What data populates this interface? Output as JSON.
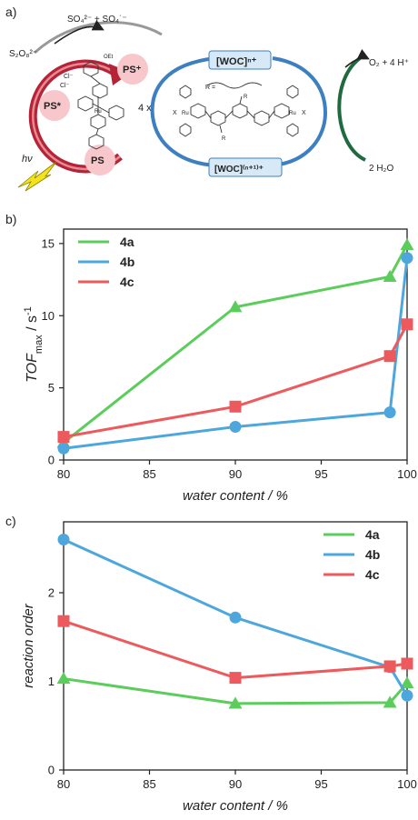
{
  "scheme": {
    "panel_label": "a)",
    "labels": {
      "so4_products": "SO₄²⁻ + SO₄˙⁻",
      "s2o8": "S₂O₈²⁻",
      "ps_plus": "PS⁺",
      "ps_star": "PS*",
      "ps": "PS",
      "hv": "hν",
      "cl1": "Cl⁻",
      "cl2": "Cl⁻",
      "four_x": "4 x",
      "woc_n": "[WOC]ⁿ⁺",
      "woc_n1": "[WOC]⁽ⁿ⁺¹⁾⁺",
      "o2_products": "O₂ + 4 H⁺",
      "water": "2 H₂O",
      "r_def": "R = ",
      "ru": "Ru",
      "x": "X",
      "oet": "OEt",
      "r": "R"
    }
  },
  "chart_data": [
    {
      "panel_label": "b)",
      "type": "line",
      "xlabel": "water content / %",
      "ylabel": {
        "main": "TOF",
        "sub": "max",
        "rest": " / s",
        "sup": "-1"
      },
      "xlim": [
        80,
        100
      ],
      "ylim": [
        0,
        16
      ],
      "xticks": [
        "80",
        "85",
        "90",
        "95",
        "100"
      ],
      "yticks": [
        "0",
        "5",
        "10",
        "15"
      ],
      "legend_position": "top-left",
      "series": [
        {
          "name": "4a",
          "color": "#5ccd5c",
          "marker": "triangle",
          "x": [
            80,
            90,
            99,
            100
          ],
          "y": [
            1.2,
            10.6,
            12.7,
            14.9
          ]
        },
        {
          "name": "4b",
          "color": "#4ea7dc",
          "marker": "circle",
          "x": [
            80,
            90,
            99,
            100
          ],
          "y": [
            0.8,
            2.3,
            3.3,
            14.0
          ]
        },
        {
          "name": "4c",
          "color": "#ec5a5d",
          "marker": "square",
          "x": [
            80,
            90,
            99,
            100
          ],
          "y": [
            1.6,
            3.7,
            7.2,
            9.4
          ]
        }
      ]
    },
    {
      "panel_label": "c)",
      "type": "line",
      "xlabel": "water content / %",
      "ylabel": "reaction order",
      "xlim": [
        80,
        100
      ],
      "ylim": [
        0,
        2.8
      ],
      "xticks": [
        "80",
        "85",
        "90",
        "95",
        "100"
      ],
      "yticks": [
        "0",
        "1",
        "2"
      ],
      "legend_position": "top-right",
      "series": [
        {
          "name": "4a",
          "color": "#5ccd5c",
          "marker": "triangle",
          "x": [
            80,
            90,
            99,
            100
          ],
          "y": [
            1.03,
            0.75,
            0.76,
            0.98
          ]
        },
        {
          "name": "4b",
          "color": "#4ea7dc",
          "marker": "circle",
          "x": [
            80,
            90,
            99,
            100
          ],
          "y": [
            2.6,
            1.72,
            1.16,
            0.84
          ]
        },
        {
          "name": "4c",
          "color": "#ec5a5d",
          "marker": "square",
          "x": [
            80,
            90,
            99,
            100
          ],
          "y": [
            1.68,
            1.04,
            1.17,
            1.2
          ]
        }
      ]
    }
  ]
}
